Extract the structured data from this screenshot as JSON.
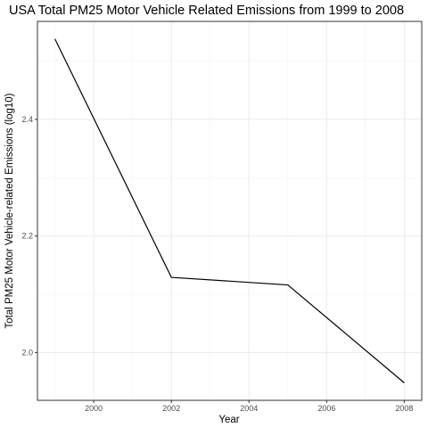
{
  "chart_data": {
    "type": "line",
    "title": "USA Total PM25 Motor Vehicle Related Emissions from 1999 to 2008",
    "xlabel": "Year",
    "ylabel": "Total PM25 Motor Vehicle-related Emissions (log10)",
    "x": [
      1999,
      2002,
      2005,
      2008
    ],
    "series": [
      {
        "values": [
          2.538,
          2.129,
          2.116,
          1.948
        ],
        "color": "#000000"
      }
    ],
    "xlim": [
      1998.55,
      2008.45
    ],
    "ylim": [
      1.918,
      2.568
    ],
    "x_ticks": [
      2000,
      2002,
      2004,
      2006,
      2008
    ],
    "x_tick_labels": [
      "2000",
      "2002",
      "2004",
      "2006",
      "2008"
    ],
    "y_ticks": [
      2.0,
      2.2,
      2.4
    ],
    "y_tick_labels": [
      "2.0",
      "2.2",
      "2.4"
    ],
    "grid": true,
    "theme": "bw"
  }
}
